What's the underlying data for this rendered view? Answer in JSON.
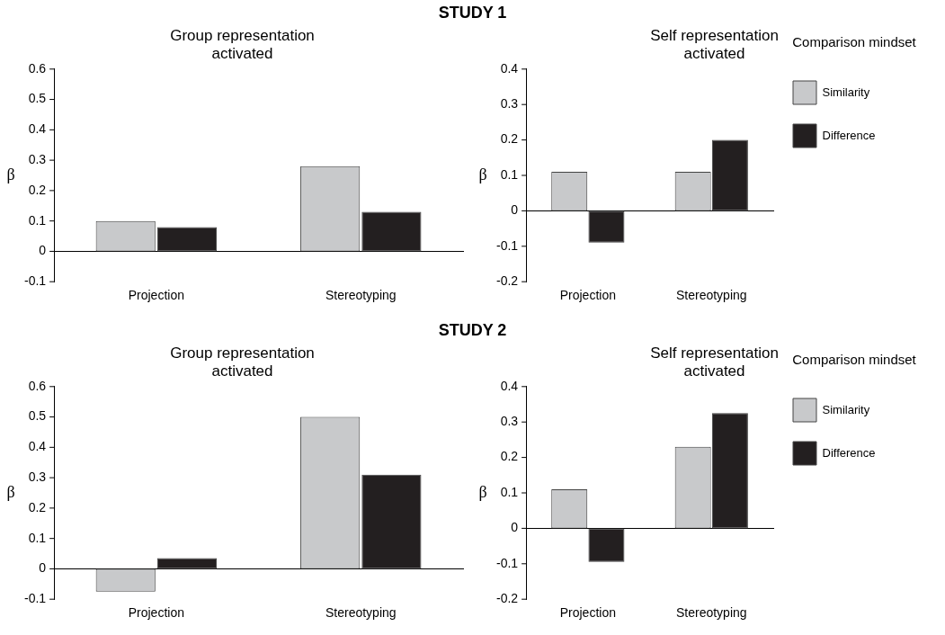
{
  "chart_data": [
    {
      "type": "bar",
      "title": "Group representation activated",
      "annotations": [
        "STUDY 1"
      ],
      "ylabel": "β",
      "categories": [
        "Projection",
        "Stereotyping"
      ],
      "ylim": [
        -0.1,
        0.6
      ],
      "yticks": [
        -0.1,
        0,
        0.1,
        0.2,
        0.3,
        0.4,
        0.5,
        0.6
      ],
      "legend": false,
      "series": [
        {
          "color": "#c8c9cb",
          "values": [
            0.1,
            0.28
          ]
        },
        {
          "color": "#231f20",
          "values": [
            0.08,
            0.13
          ]
        }
      ]
    },
    {
      "type": "bar",
      "title": "Self representation activated",
      "ylabel": "β",
      "categories": [
        "Projection",
        "Stereotyping"
      ],
      "ylim": [
        -0.2,
        0.4
      ],
      "yticks": [
        -0.2,
        -0.1,
        0,
        0.1,
        0.2,
        0.3,
        0.4
      ],
      "legend": "right",
      "legend_title": "Comparison mindset",
      "series": [
        {
          "name": "Similarity",
          "color": "#c8c9cb",
          "values": [
            0.11,
            0.11
          ]
        },
        {
          "name": "Difference",
          "color": "#231f20",
          "values": [
            -0.09,
            0.2
          ]
        }
      ]
    },
    {
      "type": "bar",
      "title": "Group representation activated",
      "annotations": [
        "STUDY 2"
      ],
      "ylabel": "β",
      "categories": [
        "Projection",
        "Stereotyping"
      ],
      "ylim": [
        -0.1,
        0.6
      ],
      "yticks": [
        -0.1,
        0,
        0.1,
        0.2,
        0.3,
        0.4,
        0.5,
        0.6
      ],
      "legend": false,
      "series": [
        {
          "color": "#c8c9cb",
          "values": [
            -0.075,
            0.5
          ]
        },
        {
          "color": "#231f20",
          "values": [
            0.035,
            0.31
          ]
        }
      ]
    },
    {
      "type": "bar",
      "title": "Self representation activated",
      "ylabel": "β",
      "categories": [
        "Projection",
        "Stereotyping"
      ],
      "ylim": [
        -0.2,
        0.4
      ],
      "yticks": [
        -0.2,
        -0.1,
        0,
        0.1,
        0.2,
        0.3,
        0.4
      ],
      "legend": "right",
      "legend_title": "Comparison mindset",
      "series": [
        {
          "name": "Similarity",
          "color": "#c8c9cb",
          "values": [
            0.11,
            0.23
          ]
        },
        {
          "name": "Difference",
          "color": "#231f20",
          "values": [
            -0.095,
            0.325
          ]
        }
      ]
    }
  ]
}
